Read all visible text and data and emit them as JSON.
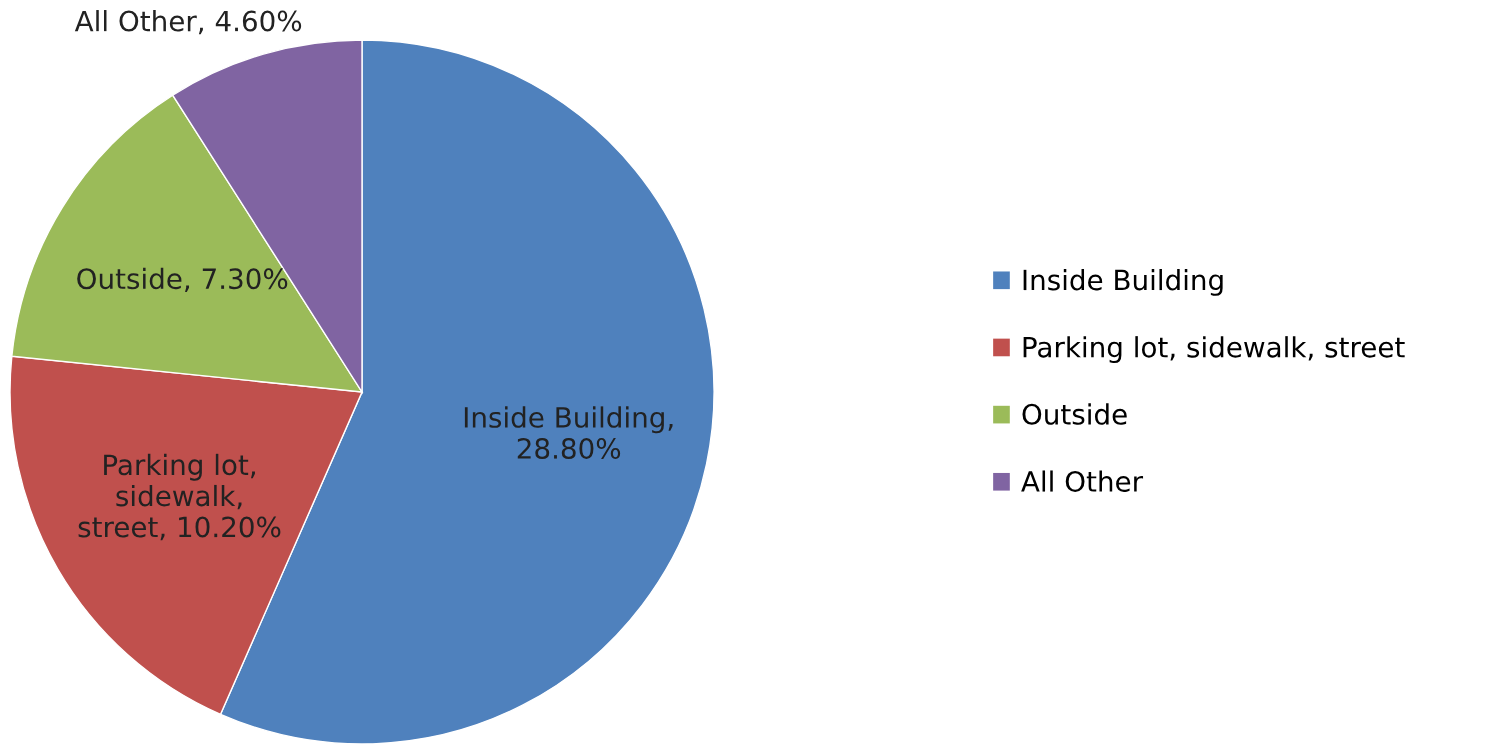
{
  "chart_data": {
    "type": "pie",
    "categories": [
      "Inside Building",
      "Parking lot, sidewalk, street",
      "Outside",
      "All Other"
    ],
    "values": [
      28.8,
      10.2,
      7.3,
      4.6
    ],
    "value_labels": [
      "Inside Building, 28.80%",
      "Parking lot, sidewalk, street, 10.20%",
      "Outside, 7.30%",
      "All Other, 4.60%"
    ],
    "colors": [
      "#4f81bd",
      "#c0504d",
      "#9bbb59",
      "#8064a2"
    ],
    "legend": "right"
  }
}
